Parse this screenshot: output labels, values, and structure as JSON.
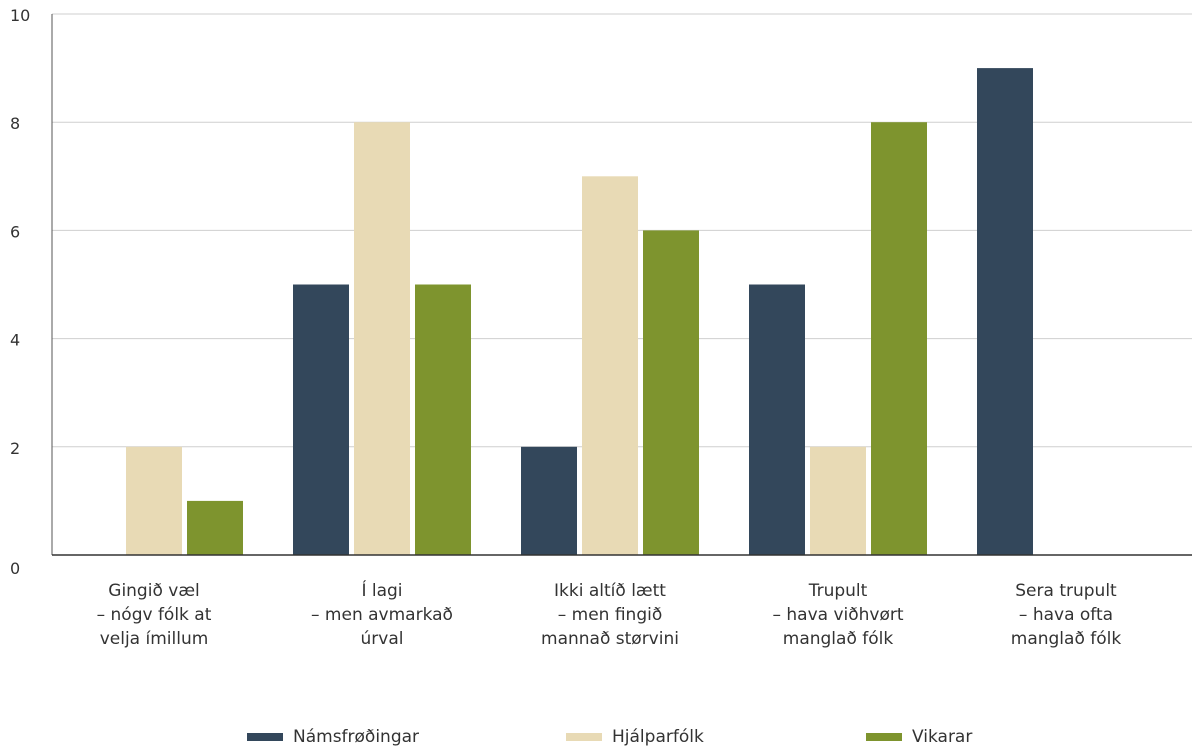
{
  "chart_data": {
    "type": "bar",
    "categories": [
      [
        "Gingið væl",
        "– nógv fólk at",
        "velja ímillum"
      ],
      [
        "Í lagi",
        "– men avmarkað",
        "úrval"
      ],
      [
        "Ikki altíð lætt",
        "– men fingið",
        "mannað størvini"
      ],
      [
        "Trupult",
        "– hava viðhvørt",
        "manglað fólk"
      ],
      [
        "Sera trupult",
        "– hava ofta",
        "manglað fólk"
      ]
    ],
    "series": [
      {
        "name": "Námsfrøðingar",
        "color": "#33475b",
        "values": [
          0,
          5,
          2,
          5,
          9
        ]
      },
      {
        "name": "Hjálparfólk",
        "color": "#e8dab5",
        "values": [
          2,
          8,
          7,
          2,
          0
        ]
      },
      {
        "name": "Vikarar",
        "color": "#7e942e",
        "values": [
          1,
          5,
          6,
          8,
          0
        ]
      }
    ],
    "yticks": [
      "0",
      "2",
      "4",
      "6",
      "8",
      "10"
    ],
    "ylim": [
      0,
      10
    ],
    "grid": true,
    "legend_position": "bottom"
  }
}
